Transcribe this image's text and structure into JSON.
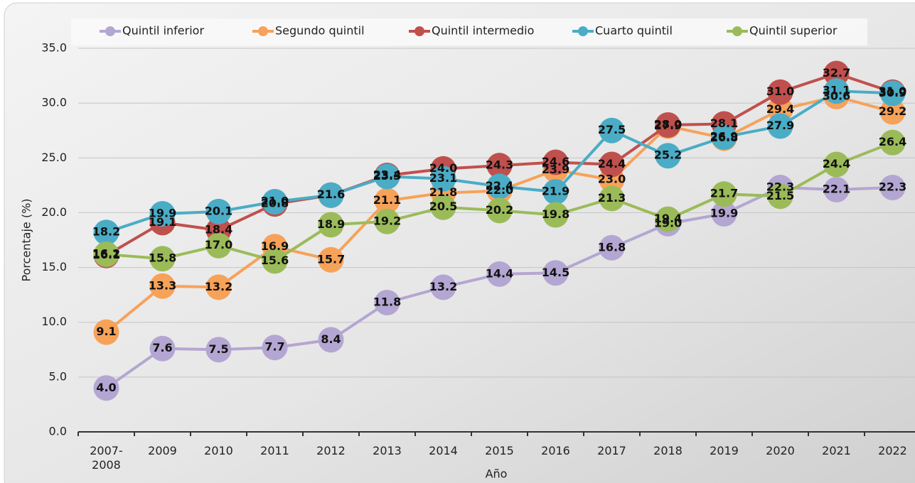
{
  "chart_data": {
    "type": "line",
    "x_label": "Año",
    "y_label": "Porcentaje (%)",
    "categories": [
      "2007-2008",
      "2009",
      "2010",
      "2011",
      "2012",
      "2013",
      "2014",
      "2015",
      "2016",
      "2017",
      "2018",
      "2019",
      "2020",
      "2021",
      "2022"
    ],
    "ylim": [
      0,
      35
    ],
    "yticks": [
      {
        "value": 0,
        "label": "0.0"
      },
      {
        "value": 5,
        "label": "5.0"
      },
      {
        "value": 10,
        "label": "10.0"
      },
      {
        "value": 15,
        "label": "15.0"
      },
      {
        "value": 20,
        "label": "20.0"
      },
      {
        "value": 25,
        "label": "25.0"
      },
      {
        "value": 30,
        "label": "30.0"
      },
      {
        "value": 35,
        "label": "35.0"
      }
    ],
    "grid": true,
    "legend": "top",
    "series": [
      {
        "name": "Quintil inferior",
        "color": "#b4a6d2",
        "values": [
          4.0,
          7.6,
          7.5,
          7.7,
          8.4,
          11.8,
          13.2,
          14.4,
          14.5,
          16.8,
          19.0,
          19.9,
          22.3,
          22.1,
          22.3
        ],
        "value_labels": [
          "4.0",
          "7.6",
          "7.5",
          "7.7",
          "8.4",
          "11.8",
          "13.2",
          "14.4",
          "14.5",
          "16.8",
          "19.0",
          "19.9",
          "22.3",
          "22.1",
          "22.3"
        ]
      },
      {
        "name": "Segundo quintil",
        "color": "#f7a259",
        "values": [
          9.1,
          13.3,
          13.2,
          16.9,
          15.7,
          21.1,
          21.8,
          22.0,
          23.9,
          23.0,
          27.9,
          26.8,
          29.4,
          30.6,
          29.2
        ],
        "value_labels": [
          "9.1",
          "13.3",
          "13.2",
          "16.9",
          "15.7",
          "21.1",
          "21.8",
          "22.0",
          "23.9",
          "23.0",
          "27.9",
          "26.8",
          "29.4",
          "30.6",
          "29.2"
        ]
      },
      {
        "name": "Quintil intermedio",
        "color": "#c0504d",
        "values": [
          16.1,
          19.1,
          18.4,
          20.8,
          21.6,
          23.4,
          24.0,
          24.3,
          24.6,
          24.4,
          28.0,
          28.1,
          31.0,
          32.7,
          31.0
        ],
        "value_labels": [
          "16.1",
          "19.1",
          "18.4",
          "20.8",
          "21.6",
          "23.4",
          "24.0",
          "24.3",
          "24.6",
          "24.4",
          "28.0",
          "28.1",
          "31.0",
          "32.7",
          "31.0"
        ]
      },
      {
        "name": "Cuarto quintil",
        "color": "#4bacc6",
        "values": [
          18.2,
          19.9,
          20.1,
          21.0,
          21.6,
          23.3,
          23.1,
          22.4,
          21.9,
          27.5,
          25.2,
          26.9,
          27.9,
          31.1,
          30.9
        ],
        "value_labels": [
          "18.2",
          "19.9",
          "20.1",
          "21.0",
          "21.6",
          "23.3",
          "23.1",
          "22.4",
          "21.9",
          "27.5",
          "25.2",
          "26.9",
          "27.9",
          "31.1",
          "30.9"
        ]
      },
      {
        "name": "Quintil superior",
        "color": "#9bbb59",
        "values": [
          16.2,
          15.8,
          17.0,
          15.6,
          18.9,
          19.2,
          20.5,
          20.2,
          19.8,
          21.3,
          19.4,
          21.7,
          21.5,
          24.4,
          26.4
        ],
        "value_labels": [
          "16.2",
          "15.8",
          "17.0",
          "15.6",
          "18.9",
          "19.2",
          "20.5",
          "20.2",
          "19.8",
          "21.3",
          "19.4",
          "21.7",
          "21.5",
          "24.4",
          "26.4"
        ]
      }
    ]
  }
}
